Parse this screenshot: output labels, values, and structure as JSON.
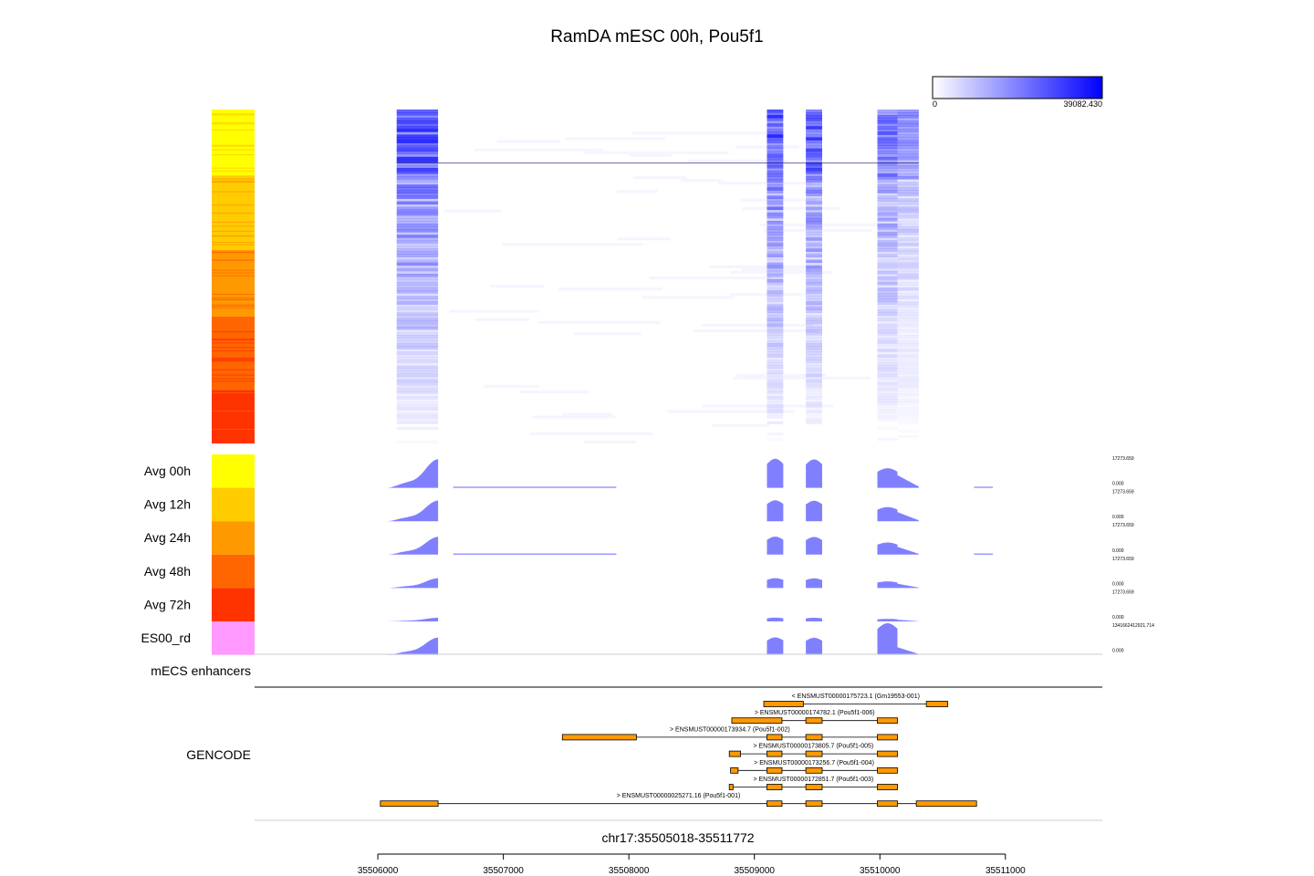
{
  "chart_data": {
    "type": "heatmap",
    "title": "RamDA mESC 00h, Pou5f1",
    "colorbar": {
      "min_label": "0",
      "max_label": "39082.430",
      "low_color": "#ffffff",
      "high_color": "#0000ff"
    },
    "genomic_range": {
      "label": "chr17:35505018-35511772",
      "start": 35505018,
      "end": 35511772
    },
    "x_ticks": [
      35506000,
      35507000,
      35508000,
      35509000,
      35510000,
      35511000
    ],
    "heatmap_signal_intervals": [
      {
        "start": 35506150,
        "end": 35506480,
        "weight": 1.0
      },
      {
        "start": 35509100,
        "end": 35509230,
        "weight": 0.95
      },
      {
        "start": 35509410,
        "end": 35509540,
        "weight": 0.9
      },
      {
        "start": 35509980,
        "end": 35510140,
        "weight": 0.7
      },
      {
        "start": 35510140,
        "end": 35510310,
        "weight": 0.45
      }
    ],
    "group_color_bands": [
      {
        "color": "#ffff00",
        "fraction": 0.2
      },
      {
        "color": "#ffcc00",
        "fraction": 0.22
      },
      {
        "color": "#ff9900",
        "fraction": 0.2
      },
      {
        "color": "#ff6600",
        "fraction": 0.22
      },
      {
        "color": "#ff3300",
        "fraction": 0.16
      }
    ],
    "tracks": [
      {
        "name": "Avg 00h",
        "color": "#ffff00",
        "max_label": "17273.659",
        "min_label": "0.000",
        "scale": 1.0
      },
      {
        "name": "Avg 12h",
        "color": "#ffcc00",
        "max_label": "17273.659",
        "min_label": "0.000",
        "scale": 0.72
      },
      {
        "name": "Avg 24h",
        "color": "#ff9900",
        "max_label": "17273.659",
        "min_label": "0.000",
        "scale": 0.62
      },
      {
        "name": "Avg 48h",
        "color": "#ff6600",
        "max_label": "17273.659",
        "min_label": "0.000",
        "scale": 0.34
      },
      {
        "name": "Avg 72h",
        "color": "#ff3300",
        "max_label": "17273.659",
        "min_label": "0.000",
        "scale": 0.13
      },
      {
        "name": "ES00_rd",
        "color": "#ff99ff",
        "max_label": "13416624129​21.714",
        "min_label": "0.000",
        "scale": 0.6
      }
    ],
    "signal_peaks": [
      {
        "start": 35506070,
        "end": 35506480,
        "height": 1.0,
        "shape": "ramp"
      },
      {
        "start": 35509100,
        "end": 35509230,
        "height": 0.92,
        "shape": "block"
      },
      {
        "start": 35509410,
        "end": 35509540,
        "height": 0.9,
        "shape": "block"
      },
      {
        "start": 35509980,
        "end": 35510140,
        "height": 0.62,
        "shape": "block"
      },
      {
        "start": 35510140,
        "end": 35510310,
        "height": 0.4,
        "shape": "decay"
      }
    ],
    "enhancer_track": {
      "name": "mECS enhancers"
    },
    "gencode_track": {
      "name": "GENCODE",
      "transcripts": [
        {
          "label": "< ENSMUST00000175723.1 (Gm19553-001)",
          "start": 35509075,
          "end": 35510540,
          "exons": [
            [
              35509075,
              35509390
            ],
            [
              35510370,
              35510540
            ]
          ]
        },
        {
          "label": "> ENSMUST00000174782.1 (Pou5f1-006)",
          "start": 35508820,
          "end": 35510140,
          "exons": [
            [
              35508820,
              35509220
            ],
            [
              35509410,
              35509540
            ],
            [
              35509980,
              35510140
            ]
          ]
        },
        {
          "label": "> ENSMUST00000173934.7 (Pou5f1-002)",
          "start": 35507470,
          "end": 35510140,
          "exons": [
            [
              35507470,
              35508060
            ],
            [
              35509100,
              35509220
            ],
            [
              35509410,
              35509540
            ],
            [
              35509980,
              35510140
            ]
          ]
        },
        {
          "label": "> ENSMUST00000173805.7 (Pou5f1-005)",
          "start": 35508800,
          "end": 35510140,
          "exons": [
            [
              35508800,
              35508890
            ],
            [
              35509100,
              35509220
            ],
            [
              35509410,
              35509540
            ],
            [
              35509980,
              35510140
            ]
          ]
        },
        {
          "label": "> ENSMUST00000173256.7 (Pou5f1-004)",
          "start": 35508810,
          "end": 35510140,
          "exons": [
            [
              35508810,
              35508870
            ],
            [
              35509100,
              35509220
            ],
            [
              35509410,
              35509540
            ],
            [
              35509980,
              35510140
            ]
          ]
        },
        {
          "label": "> ENSMUST00000172851.7 (Pou5f1-003)",
          "start": 35508800,
          "end": 35510140,
          "exons": [
            [
              35508800,
              35508830
            ],
            [
              35509100,
              35509220
            ],
            [
              35509410,
              35509540
            ],
            [
              35509980,
              35510140
            ]
          ]
        },
        {
          "label": "> ENSMUST00000025271.16 (Pou5f1-001)",
          "start": 35506020,
          "end": 35510770,
          "exons": [
            [
              35506020,
              35506480
            ],
            [
              35509100,
              35509220
            ],
            [
              35509410,
              35509540
            ],
            [
              35509980,
              35510140
            ],
            [
              35510290,
              35510770
            ]
          ]
        }
      ]
    }
  }
}
